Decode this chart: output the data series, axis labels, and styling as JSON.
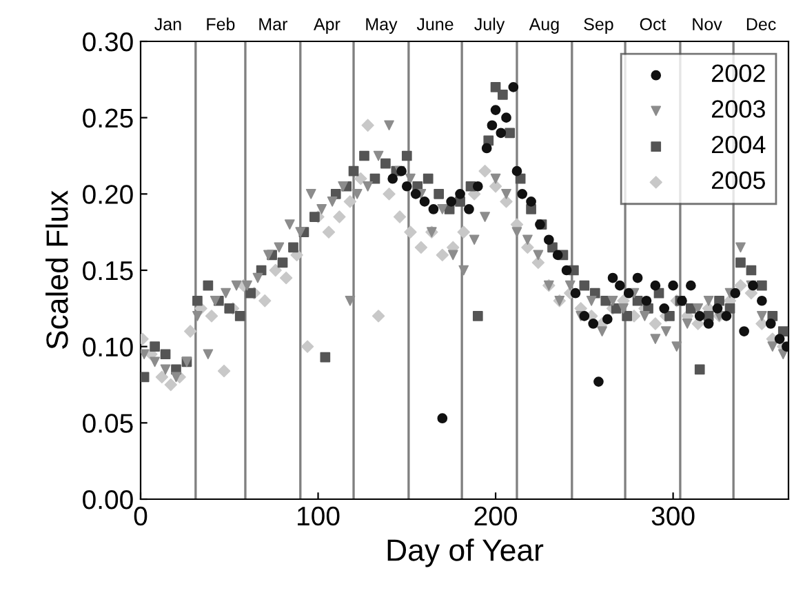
{
  "chart_data": {
    "type": "scatter",
    "xlabel": "Day of Year",
    "ylabel": "Scaled Flux",
    "xlim": [
      0,
      365
    ],
    "xticks": [
      0,
      100,
      200,
      300
    ],
    "ylim": [
      0,
      0.3
    ],
    "yticks": [
      {
        "value": 0,
        "label": "0.00"
      },
      {
        "value": 0.05,
        "label": "0.05"
      },
      {
        "value": 0.1,
        "label": "0.10"
      },
      {
        "value": 0.15,
        "label": "0.15"
      },
      {
        "value": 0.2,
        "label": "0.20"
      },
      {
        "value": 0.25,
        "label": "0.25"
      },
      {
        "value": 0.3,
        "label": "0.30"
      }
    ],
    "annotations": [
      "Jan",
      "Feb",
      "Mar",
      "Apr",
      "May",
      "June",
      "July",
      "Aug",
      "Sep",
      "Oct",
      "Nov",
      "Dec"
    ],
    "ref_lines": [
      {
        "axis": "x",
        "value": 31
      },
      {
        "axis": "x",
        "value": 59
      },
      {
        "axis": "x",
        "value": 90
      },
      {
        "axis": "x",
        "value": 120
      },
      {
        "axis": "x",
        "value": 151
      },
      {
        "axis": "x",
        "value": 181
      },
      {
        "axis": "x",
        "value": 212
      },
      {
        "axis": "x",
        "value": 243
      },
      {
        "axis": "x",
        "value": 273
      },
      {
        "axis": "x",
        "value": 304
      },
      {
        "axis": "x",
        "value": 334
      }
    ],
    "grid": false,
    "legend": "top right",
    "series": [
      {
        "name": "2002",
        "color": "#111111",
        "marker": "circle",
        "x": [
          142,
          147,
          150,
          155,
          160,
          165,
          170,
          175,
          180,
          185,
          190,
          195,
          198,
          200,
          203,
          206,
          210,
          212,
          215,
          220,
          225,
          230,
          235,
          240,
          245,
          250,
          255,
          258,
          263,
          266,
          270,
          275,
          280,
          285,
          290,
          295,
          300,
          305,
          310,
          315,
          320,
          325,
          330,
          335,
          340,
          345,
          350,
          355,
          360,
          364
        ],
        "values": [
          0.21,
          0.215,
          0.205,
          0.2,
          0.195,
          0.19,
          0.053,
          0.195,
          0.2,
          0.19,
          0.205,
          0.23,
          0.245,
          0.255,
          0.24,
          0.25,
          0.27,
          0.215,
          0.2,
          0.195,
          0.18,
          0.17,
          0.16,
          0.15,
          0.135,
          0.12,
          0.115,
          0.077,
          0.118,
          0.145,
          0.14,
          0.135,
          0.145,
          0.13,
          0.14,
          0.125,
          0.14,
          0.13,
          0.14,
          0.12,
          0.115,
          0.125,
          0.12,
          0.135,
          0.11,
          0.14,
          0.13,
          0.115,
          0.105,
          0.1
        ]
      },
      {
        "name": "2003",
        "color": "#8c8c8c",
        "marker": "triangle",
        "x": [
          2,
          8,
          14,
          20,
          26,
          32,
          38,
          42,
          48,
          54,
          60,
          66,
          72,
          78,
          84,
          90,
          96,
          102,
          108,
          114,
          118,
          122,
          128,
          134,
          140,
          146,
          152,
          158,
          164,
          170,
          176,
          182,
          188,
          194,
          200,
          206,
          212,
          218,
          224,
          230,
          236,
          242,
          248,
          254,
          260,
          266,
          272,
          278,
          284,
          290,
          296,
          302,
          308,
          314,
          320,
          326,
          332,
          338,
          344,
          350,
          356,
          362
        ],
        "values": [
          0.095,
          0.09,
          0.085,
          0.08,
          0.09,
          0.12,
          0.095,
          0.13,
          0.135,
          0.14,
          0.14,
          0.145,
          0.16,
          0.165,
          0.18,
          0.175,
          0.2,
          0.19,
          0.195,
          0.205,
          0.13,
          0.2,
          0.205,
          0.225,
          0.245,
          0.215,
          0.21,
          0.2,
          0.175,
          0.19,
          0.16,
          0.15,
          0.17,
          0.185,
          0.21,
          0.2,
          0.175,
          0.17,
          0.16,
          0.14,
          0.13,
          0.14,
          0.12,
          0.13,
          0.11,
          0.13,
          0.125,
          0.135,
          0.12,
          0.105,
          0.11,
          0.1,
          0.115,
          0.125,
          0.13,
          0.12,
          0.135,
          0.165,
          0.14,
          0.12,
          0.1,
          0.095
        ]
      },
      {
        "name": "2004",
        "color": "#555555",
        "marker": "square",
        "x": [
          2,
          8,
          14,
          20,
          26,
          32,
          38,
          44,
          50,
          56,
          62,
          68,
          74,
          80,
          86,
          92,
          98,
          104,
          110,
          116,
          120,
          126,
          132,
          138,
          144,
          150,
          156,
          162,
          168,
          174,
          180,
          186,
          190,
          196,
          200,
          204,
          208,
          214,
          220,
          226,
          232,
          238,
          244,
          250,
          256,
          262,
          268,
          274,
          280,
          286,
          292,
          298,
          304,
          310,
          315,
          320,
          326,
          332,
          338,
          344,
          350,
          356,
          362
        ],
        "values": [
          0.08,
          0.1,
          0.095,
          0.085,
          0.09,
          0.13,
          0.14,
          0.13,
          0.125,
          0.12,
          0.135,
          0.15,
          0.16,
          0.155,
          0.165,
          0.175,
          0.185,
          0.093,
          0.2,
          0.205,
          0.215,
          0.225,
          0.21,
          0.22,
          0.215,
          0.225,
          0.205,
          0.21,
          0.2,
          0.19,
          0.195,
          0.205,
          0.12,
          0.235,
          0.27,
          0.265,
          0.24,
          0.21,
          0.19,
          0.18,
          0.165,
          0.16,
          0.15,
          0.14,
          0.135,
          0.13,
          0.125,
          0.12,
          0.13,
          0.125,
          0.135,
          0.12,
          0.13,
          0.125,
          0.085,
          0.12,
          0.13,
          0.125,
          0.155,
          0.15,
          0.14,
          0.12,
          0.11
        ]
      },
      {
        "name": "2005",
        "color": "#c8c8c8",
        "marker": "diamond",
        "x": [
          1,
          6,
          12,
          17,
          22,
          28,
          34,
          40,
          47,
          52,
          58,
          64,
          70,
          76,
          82,
          88,
          94,
          100,
          106,
          112,
          118,
          124,
          128,
          134,
          140,
          146,
          152,
          158,
          164,
          170,
          176,
          182,
          188,
          194,
          200,
          206,
          212,
          218,
          224,
          230,
          236,
          242,
          248,
          254,
          260,
          266,
          272,
          278,
          284,
          290,
          296,
          302,
          308,
          314,
          320,
          326,
          332,
          338,
          344,
          350,
          356,
          362
        ],
        "values": [
          0.105,
          0.095,
          0.08,
          0.075,
          0.08,
          0.11,
          0.125,
          0.12,
          0.084,
          0.125,
          0.14,
          0.135,
          0.13,
          0.15,
          0.145,
          0.16,
          0.1,
          0.185,
          0.175,
          0.185,
          0.195,
          0.21,
          0.245,
          0.12,
          0.2,
          0.185,
          0.175,
          0.165,
          0.175,
          0.16,
          0.165,
          0.175,
          0.2,
          0.215,
          0.205,
          0.195,
          0.18,
          0.165,
          0.155,
          0.14,
          0.13,
          0.135,
          0.125,
          0.12,
          0.115,
          0.125,
          0.13,
          0.12,
          0.125,
          0.115,
          0.12,
          0.13,
          0.12,
          0.115,
          0.125,
          0.12,
          0.13,
          0.14,
          0.135,
          0.115,
          0.105,
          0.1
        ]
      }
    ]
  }
}
